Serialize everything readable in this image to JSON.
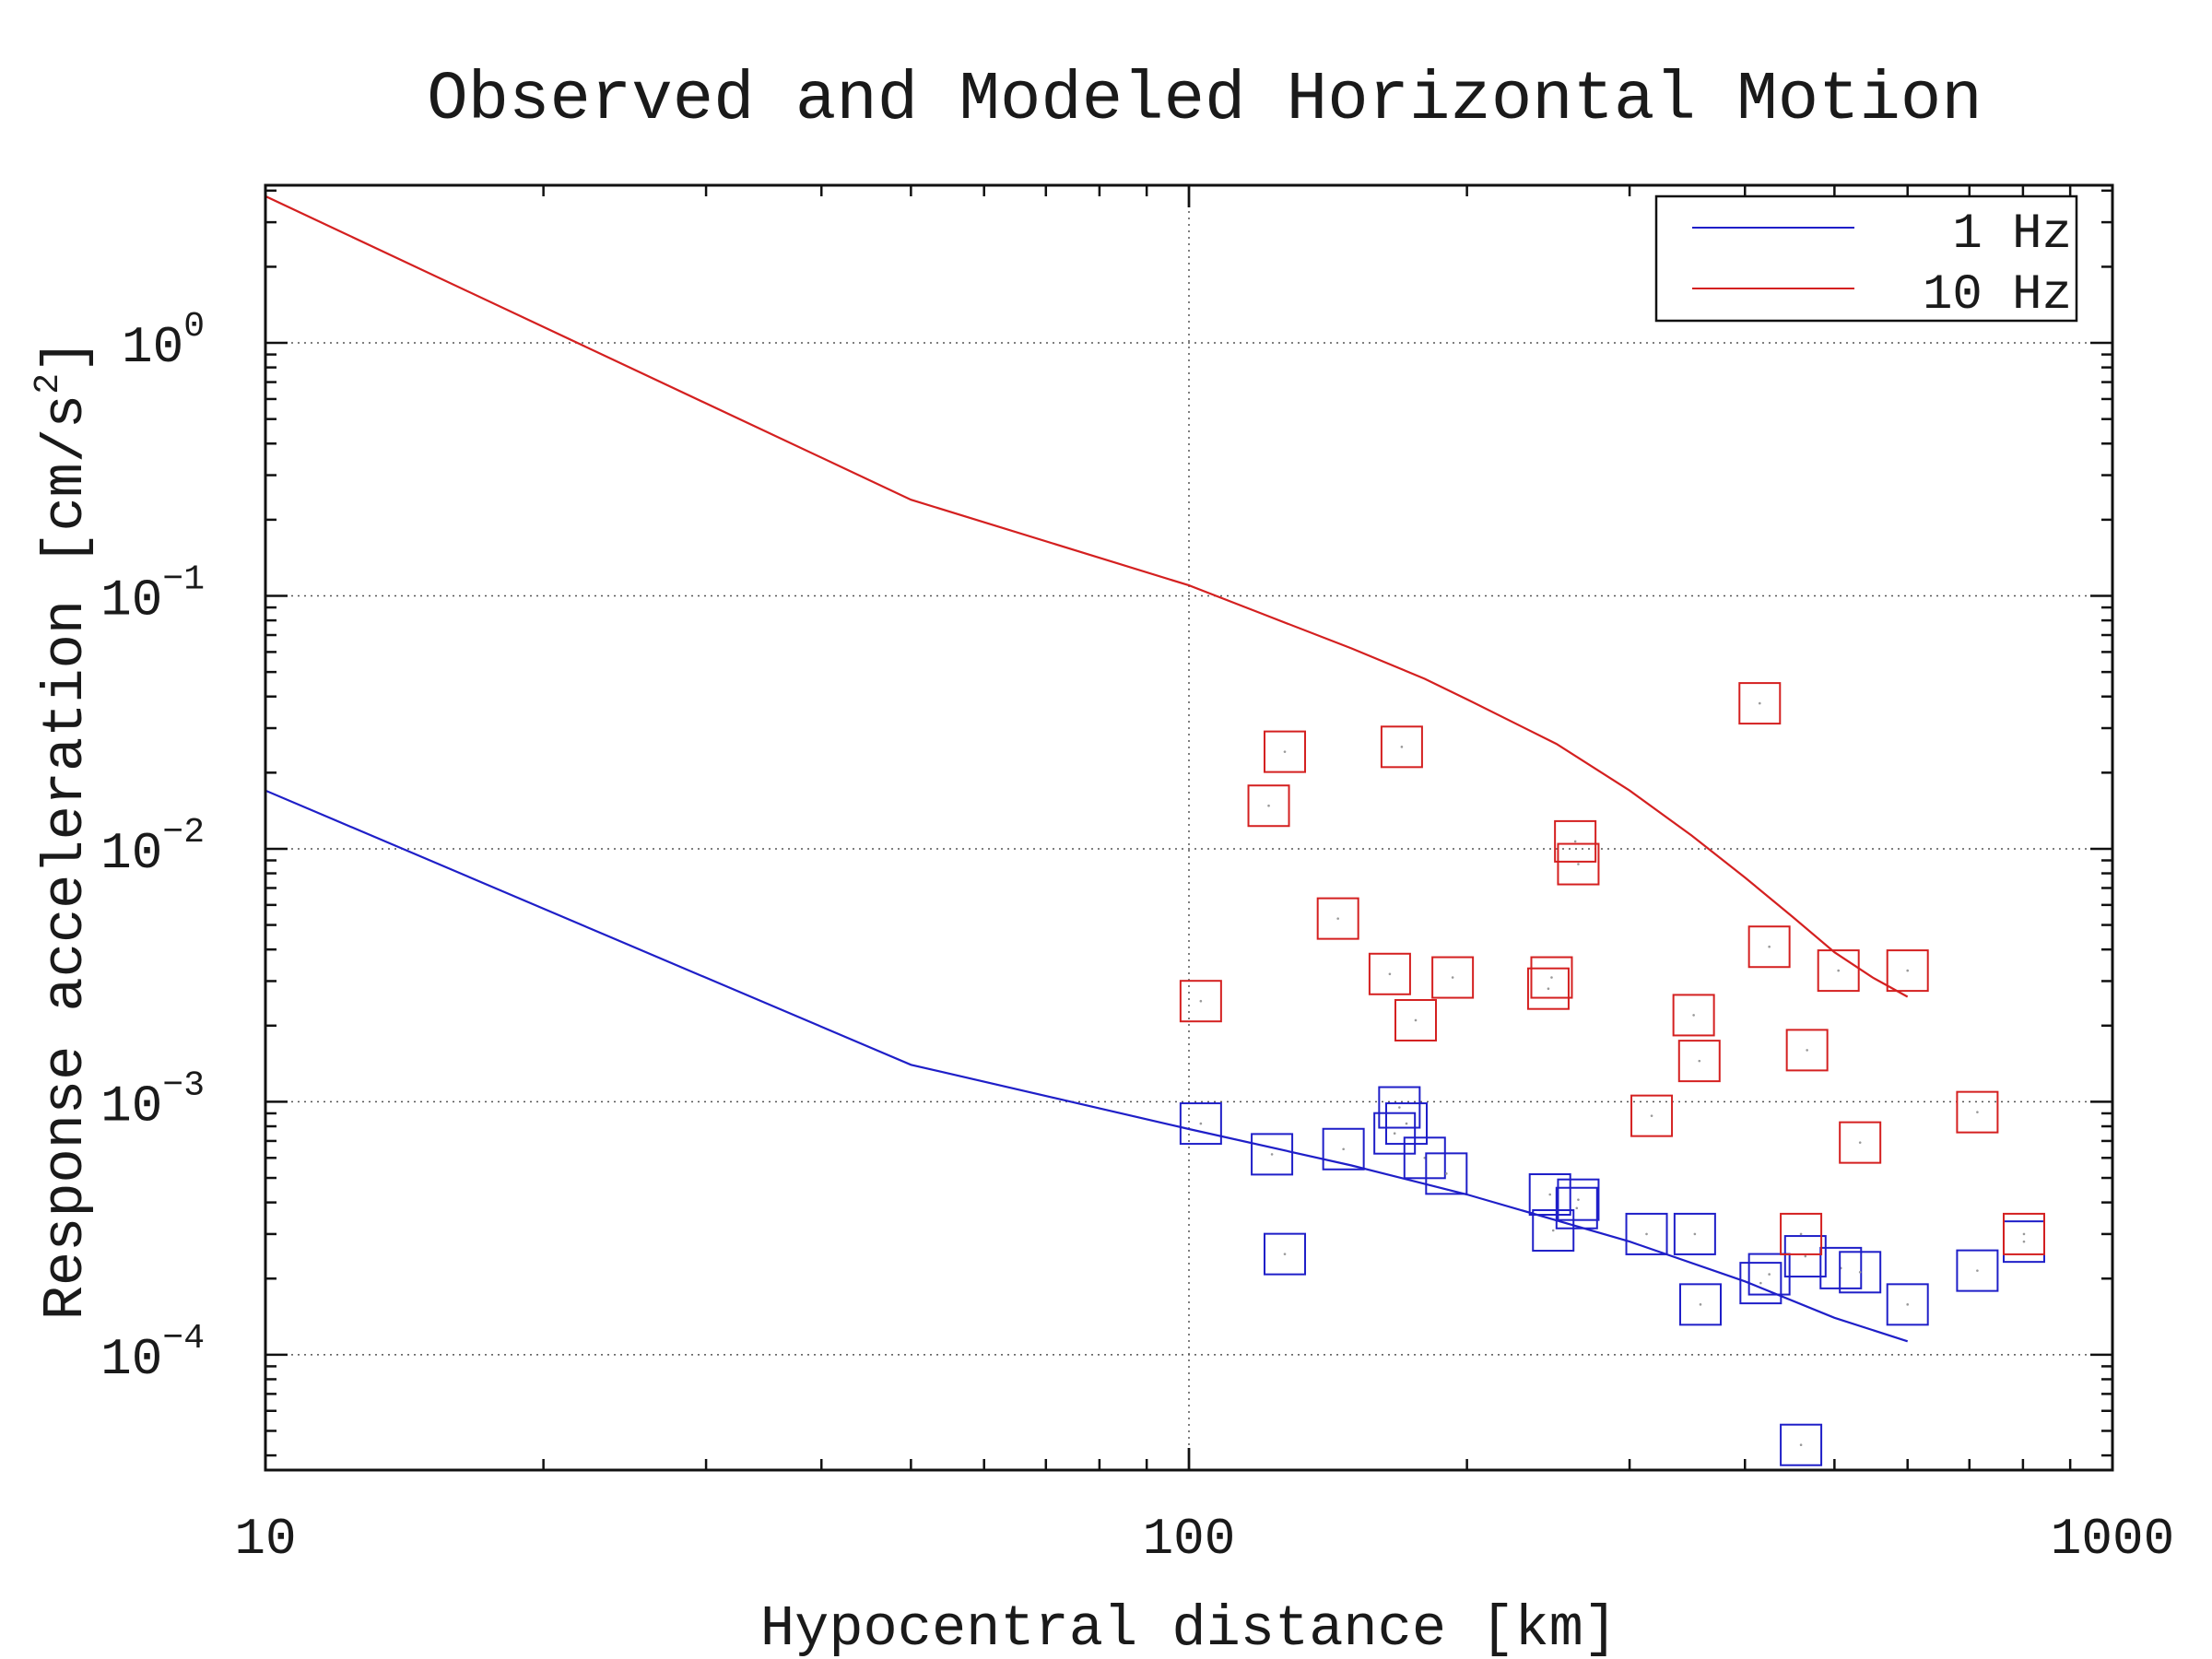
{
  "chart_data": {
    "type": "scatter",
    "title": "Observed and Modeled Horizontal Motion",
    "xlabel": "Hypocentral distance [km]",
    "ylabel": "Response acceleration [cm/s",
    "ylabel_sup": "2",
    "ylabel_suffix": "]",
    "x_scale": "log",
    "y_scale": "log",
    "xlim": [
      10,
      1000
    ],
    "ylim": [
      3.5e-05,
      4.2
    ],
    "x_ticks": [
      {
        "value": 10,
        "label": "10"
      },
      {
        "value": 100,
        "label": "100"
      },
      {
        "value": 1000,
        "label": "1000"
      }
    ],
    "y_ticks": [
      {
        "value": 0.0001,
        "base": "10",
        "exp": "−4"
      },
      {
        "value": 0.001,
        "base": "10",
        "exp": "−3"
      },
      {
        "value": 0.01,
        "base": "10",
        "exp": "−2"
      },
      {
        "value": 0.1,
        "base": "10",
        "exp": "−1"
      },
      {
        "value": 1,
        "base": "10",
        "exp": "0"
      }
    ],
    "grid": "dotted",
    "legend_position": "top-right",
    "series": [
      {
        "name": "1 Hz",
        "color": "#1f1fc8",
        "model": {
          "x": [
            10,
            50,
            100,
            150,
            200,
            300,
            400,
            500,
            600
          ],
          "y": [
            0.017,
            0.0014,
            0.00078,
            0.00056,
            0.00043,
            0.00028,
            0.000195,
            0.00014,
            0.000113
          ]
        },
        "observed": {
          "x": [
            103,
            123,
            127,
            147,
            167,
            169,
            172,
            180,
            190,
            246,
            248,
            263,
            264,
            313,
            353,
            358,
            416,
            425,
            460,
            465,
            508,
            533,
            600,
            714,
            802
          ],
          "y": [
            0.00082,
            0.00062,
            0.00025,
            0.00065,
            0.00075,
            0.00095,
            0.00082,
            0.0006,
            0.00052,
            0.00043,
            0.00031,
            0.00038,
            0.00041,
            0.0003,
            0.0003,
            0.000158,
            0.000192,
            0.000208,
            4.4e-05,
            0.000245,
            0.00022,
            0.000212,
            0.000158,
            0.000215,
            0.00028
          ]
        }
      },
      {
        "name": "10 Hz",
        "color": "#d42020",
        "model": {
          "x": [
            10,
            50,
            100,
            120,
            150,
            180,
            200,
            250,
            300,
            350,
            400,
            450,
            500,
            550,
            600
          ],
          "y": [
            3.8,
            0.24,
            0.11,
            0.085,
            0.062,
            0.047,
            0.039,
            0.026,
            0.017,
            0.0113,
            0.0077,
            0.0054,
            0.0039,
            0.0031,
            0.0026
          ]
        },
        "observed": {
          "x": [
            103,
            122,
            127,
            145,
            165,
            170,
            176,
            193,
            245,
            247,
            262,
            264,
            317,
            352,
            357,
            415,
            425,
            460,
            467,
            505,
            533,
            600,
            714,
            802
          ],
          "y": [
            0.0025,
            0.0148,
            0.0242,
            0.0053,
            0.0032,
            0.0253,
            0.0021,
            0.0031,
            0.0028,
            0.0031,
            0.0107,
            0.0087,
            0.00088,
            0.0022,
            0.00145,
            0.0376,
            0.0041,
            0.0003,
            0.0016,
            0.0033,
            0.00069,
            0.0033,
            0.00091,
            0.0003
          ]
        }
      }
    ]
  }
}
